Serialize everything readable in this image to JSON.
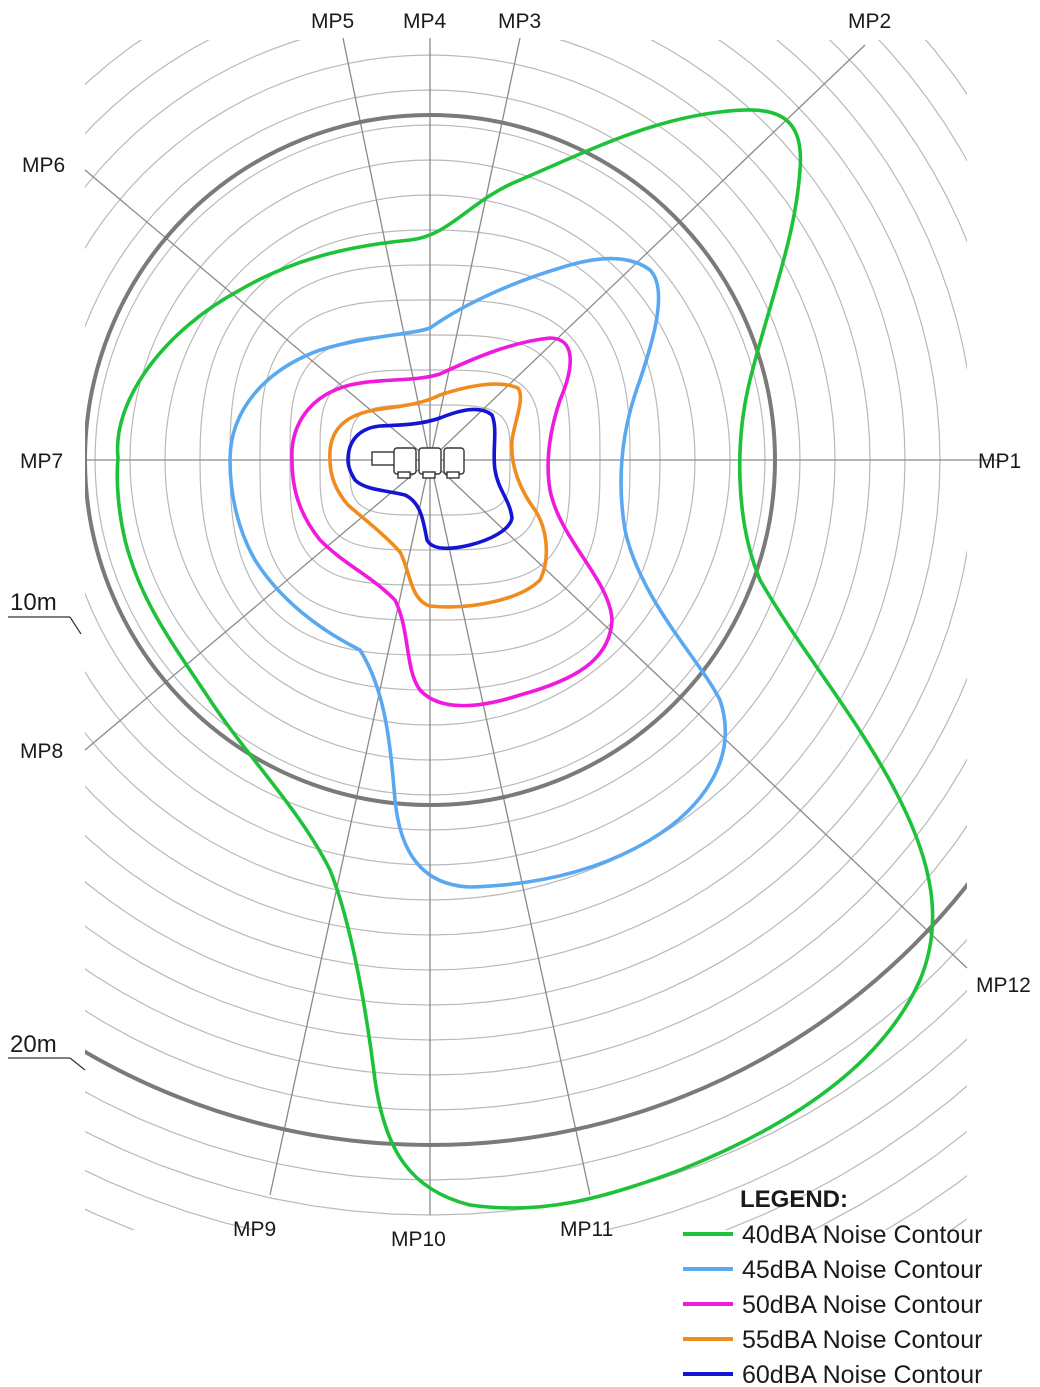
{
  "measurement_points": [
    "MP1",
    "MP2",
    "MP3",
    "MP4",
    "MP5",
    "MP6",
    "MP7",
    "MP8",
    "MP9",
    "MP10",
    "MP11",
    "MP12"
  ],
  "distance_markers": [
    "10m",
    "20m"
  ],
  "legend": {
    "title": "LEGEND:",
    "items": [
      {
        "label": "40dBA Noise Contour",
        "color": "#1ec23a"
      },
      {
        "label": "45dBA Noise Contour",
        "color": "#5aa9f0"
      },
      {
        "label": "50dBA Noise Contour",
        "color": "#f01adf"
      },
      {
        "label": "55dBA Noise Contour",
        "color": "#f08c1e"
      },
      {
        "label": "60dBA Noise Contour",
        "color": "#1414d2"
      }
    ]
  },
  "colors": {
    "grid": "#b9b9b9",
    "major_ring": "#7a7a7a",
    "text": "#1a1a1a"
  }
}
